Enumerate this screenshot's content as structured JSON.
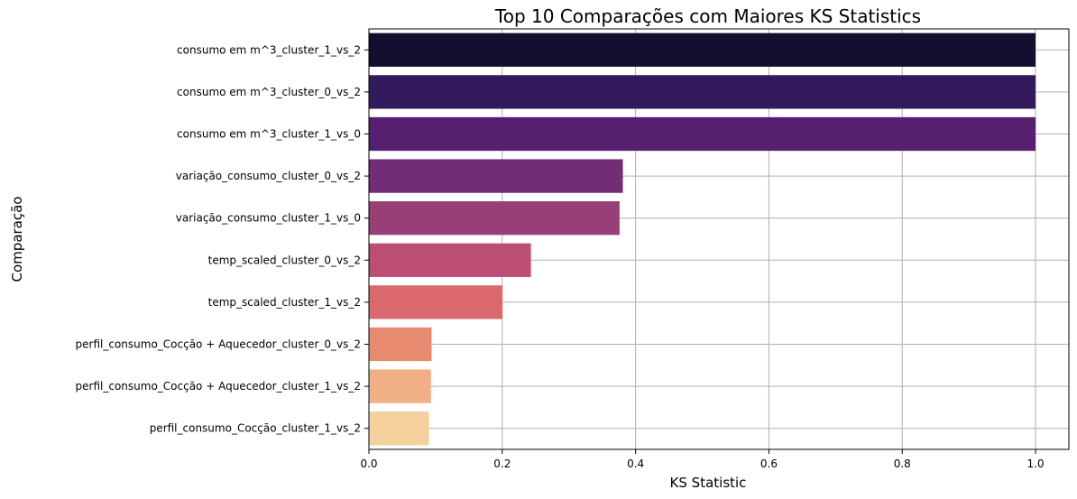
{
  "chart_data": {
    "type": "bar",
    "orientation": "horizontal",
    "title": "Top 10 Comparações com Maiores KS Statistics",
    "xlabel": "KS Statistic",
    "ylabel": "Comparação",
    "xlim": [
      0,
      1.05
    ],
    "xticks": [
      "0.0",
      "0.2",
      "0.4",
      "0.6",
      "0.8",
      "1.0"
    ],
    "xtick_values": [
      0,
      0.2,
      0.4,
      0.6,
      0.8,
      1.0
    ],
    "grid": true,
    "categories": [
      "consumo em m^3_cluster_1_vs_2",
      "consumo em m^3_cluster_0_vs_2",
      "consumo em m^3_cluster_1_vs_0",
      "variação_consumo_cluster_0_vs_2",
      "variação_consumo_cluster_1_vs_0",
      "temp_scaled_cluster_0_vs_2",
      "temp_scaled_cluster_1_vs_2",
      "perfil_consumo_Cocção + Aquecedor_cluster_0_vs_2",
      "perfil_consumo_Cocção + Aquecedor_cluster_1_vs_2",
      "perfil_consumo_Cocção_cluster_1_vs_2"
    ],
    "values": [
      1.0,
      1.0,
      1.0,
      0.381,
      0.376,
      0.243,
      0.2,
      0.094,
      0.093,
      0.09
    ],
    "colors": [
      "#140f2e",
      "#331a5c",
      "#561f70",
      "#722e74",
      "#973f76",
      "#bd4e73",
      "#da686d",
      "#e78a70",
      "#f0af84",
      "#f3d09c"
    ]
  }
}
